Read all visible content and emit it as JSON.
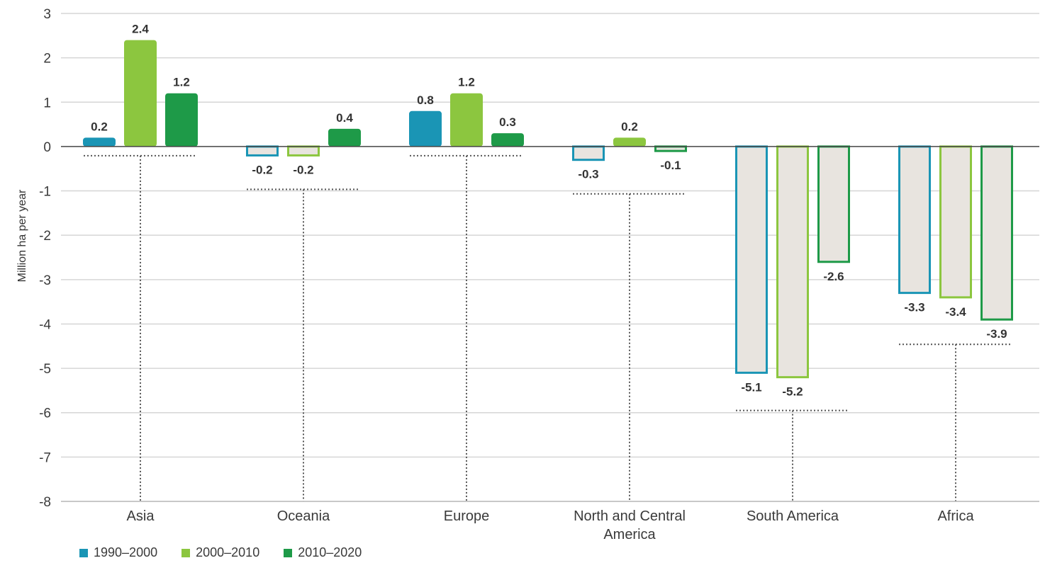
{
  "chart_data": {
    "type": "bar",
    "ylabel": "Million ha per year",
    "ylim": [
      -8,
      3
    ],
    "yticks": [
      "3",
      "2",
      "1",
      "0",
      "-1",
      "-2",
      "-3",
      "-4",
      "-5",
      "-6",
      "-7",
      "-8"
    ],
    "grid": true,
    "categories": [
      "Asia",
      "Oceania",
      "Europe",
      "North and Central America",
      "South America",
      "Africa"
    ],
    "category_label_lines": [
      [
        "Asia"
      ],
      [
        "Oceania"
      ],
      [
        "Europe"
      ],
      [
        "North and Central",
        "America"
      ],
      [
        "South America"
      ],
      [
        "Africa"
      ]
    ],
    "series": [
      {
        "name": "1990–2000",
        "color": "#1a95b5",
        "values": [
          0.2,
          -0.2,
          0.8,
          -0.3,
          -5.1,
          -3.3
        ],
        "labels": [
          "0.2",
          "-0.2",
          "0.8",
          "-0.3",
          "-5.1",
          "-3.3"
        ]
      },
      {
        "name": "2000–2010",
        "color": "#8cc63f",
        "values": [
          2.4,
          -0.2,
          1.2,
          0.2,
          -5.2,
          -3.4
        ],
        "labels": [
          "2.4",
          "-0.2",
          "1.2",
          "0.2",
          "-5.2",
          "-3.4"
        ]
      },
      {
        "name": "2010–2020",
        "color": "#1e9a48",
        "values": [
          1.2,
          0.4,
          0.3,
          -0.1,
          -2.6,
          -3.9
        ],
        "labels": [
          "1.2",
          "0.4",
          "0.3",
          "-0.1",
          "-2.6",
          "-3.9"
        ]
      }
    ],
    "legend_position": "bottom-left",
    "negative_bar_fill": "#e8e4df",
    "grid_color": "#d6d6d6"
  }
}
